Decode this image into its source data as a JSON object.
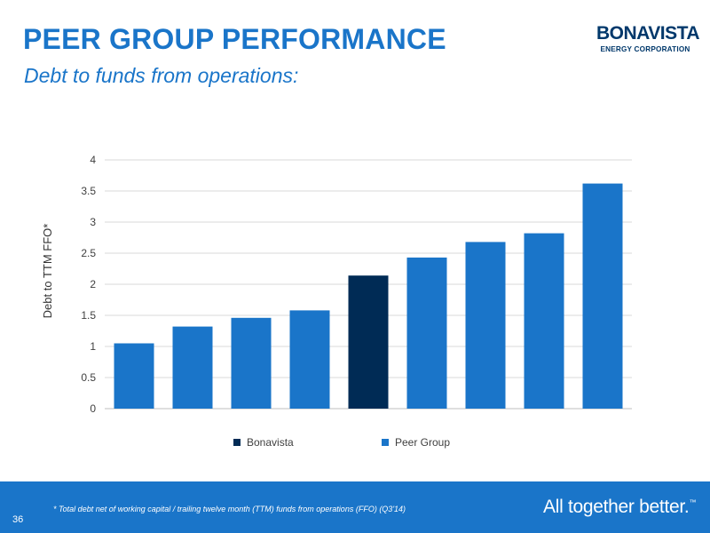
{
  "header": {
    "title": "PEER GROUP PERFORMANCE",
    "subtitle": "Debt to funds from operations:"
  },
  "logo": {
    "name": "BONAVISTA",
    "subtitle": "ENERGY CORPORATION"
  },
  "footer": {
    "page_number": "36",
    "footnote": "* Total debt net of working capital / trailing twelve month (TTM) funds from operations (FFO)  (Q3'14)",
    "tagline": "All together better.",
    "tagline_mark": "™"
  },
  "colors": {
    "accent": "#1a75c9",
    "bonavista": "#002b55",
    "peer_group": "#1a75c9",
    "grid": "#d9d9d9"
  },
  "chart_data": {
    "type": "bar",
    "ylabel": "Debt to TTM FFO*",
    "ylim": [
      0,
      4
    ],
    "yticks": [
      0,
      0.5,
      1,
      1.5,
      2,
      2.5,
      3,
      3.5,
      4
    ],
    "ytick_labels": [
      "0",
      "0.5",
      "1",
      "1.5",
      "2",
      "2.5",
      "3",
      "3.5",
      "4"
    ],
    "grid": true,
    "legend_position": "bottom",
    "series": [
      {
        "name": "Bonavista",
        "color": "#002b55"
      },
      {
        "name": "Peer Group",
        "color": "#1a75c9"
      }
    ],
    "bars": [
      {
        "value": 1.05,
        "series": "Peer Group"
      },
      {
        "value": 1.32,
        "series": "Peer Group"
      },
      {
        "value": 1.46,
        "series": "Peer Group"
      },
      {
        "value": 1.58,
        "series": "Peer Group"
      },
      {
        "value": 2.14,
        "series": "Bonavista"
      },
      {
        "value": 2.43,
        "series": "Peer Group"
      },
      {
        "value": 2.68,
        "series": "Peer Group"
      },
      {
        "value": 2.82,
        "series": "Peer Group"
      },
      {
        "value": 3.62,
        "series": "Peer Group"
      }
    ]
  }
}
